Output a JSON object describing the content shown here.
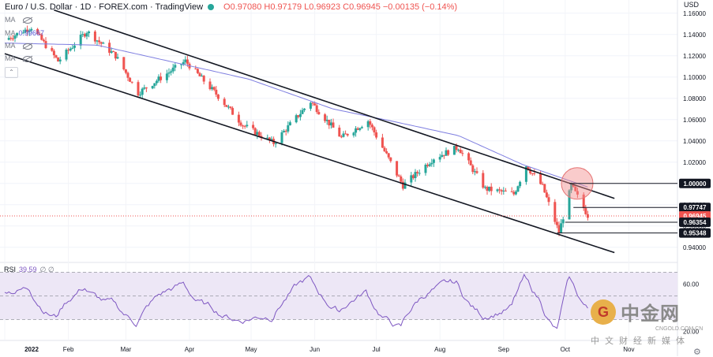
{
  "header": {
    "symbol_title": "Euro / U.S. Dollar · 1D · FOREX.com · TradingView",
    "ohlc": "O0.97080 H0.97179 L0.96923 C0.96945 −0.00135 (−0.14%)"
  },
  "indicators": {
    "ma_rows": [
      {
        "label": "MA",
        "value": ""
      },
      {
        "label": "MA",
        "value": "0.99667"
      },
      {
        "label": "MA",
        "value": ""
      },
      {
        "label": "MA",
        "value": ""
      }
    ],
    "collapse_glyph": "⌃",
    "rsi": {
      "label": "RSI",
      "value": "39.59",
      "options": "∅ ∅"
    }
  },
  "axis": {
    "currency": "USD",
    "settings_glyph": "⚙"
  },
  "watermark": {
    "logo_glyph": "G",
    "name": "中金网",
    "site": "CNGOLD.COM.CN",
    "subtitle": "中文财经新媒体"
  },
  "chart_data": [
    {
      "type": "candlestick",
      "title": "Euro / U.S. Dollar · 1D · FOREX.com",
      "x_labels": [
        "2022",
        "Feb",
        "Mar",
        "Apr",
        "May",
        "Jun",
        "Jul",
        "Aug",
        "Sep",
        "Oct",
        "Nov"
      ],
      "y_ticks": [
        "1.16000",
        "1.14000",
        "1.12000",
        "1.10000",
        "1.08000",
        "1.06000",
        "1.04000",
        "1.02000",
        "1.00000",
        "0.98000",
        "0.96000",
        "0.94000"
      ],
      "ylim": [
        0.928,
        1.168
      ],
      "price_tags": [
        {
          "label": "1.00000",
          "value": 1.0,
          "style": "dark"
        },
        {
          "label": "0.97747",
          "value": 0.97747,
          "style": "dark"
        },
        {
          "label": "0.96945",
          "value": 0.96945,
          "style": "current"
        },
        {
          "label": "0.96354",
          "value": 0.96354,
          "style": "dark"
        },
        {
          "label": "0.95348",
          "value": 0.95348,
          "style": "dark"
        }
      ],
      "colors": {
        "up": "#26a69a",
        "down": "#ef5350",
        "ma": "#7e7ee0",
        "channel": "#131722",
        "circle": "#f28b8b"
      },
      "trend_channel": {
        "upper": [
          {
            "x": "2022-01-25",
            "y": 1.163
          },
          {
            "x": "2022-10-25",
            "y": 0.986
          }
        ],
        "lower": [
          {
            "x": "2022-01-01",
            "y": 1.122
          },
          {
            "x": "2022-10-25",
            "y": 0.935
          }
        ]
      },
      "highlight": {
        "x": "2022-10-03",
        "y": 1.0
      },
      "horizontal_levels": [
        {
          "value": 1.0,
          "from": "2022-10-03"
        },
        {
          "value": 0.97747,
          "from": "2022-10-05"
        },
        {
          "value": 0.96354,
          "from": "2022-10-01"
        },
        {
          "value": 0.95348,
          "from": "2022-09-27"
        }
      ],
      "waypoints": [
        {
          "d": "2022-01-01",
          "p": 1.135
        },
        {
          "d": "2022-01-14",
          "p": 1.147
        },
        {
          "d": "2022-01-27",
          "p": 1.115
        },
        {
          "d": "2022-02-10",
          "p": 1.143
        },
        {
          "d": "2022-02-24",
          "p": 1.12
        },
        {
          "d": "2022-03-07",
          "p": 1.085
        },
        {
          "d": "2022-03-30",
          "p": 1.115
        },
        {
          "d": "2022-04-15",
          "p": 1.082
        },
        {
          "d": "2022-04-27",
          "p": 1.055
        },
        {
          "d": "2022-05-12",
          "p": 1.038
        },
        {
          "d": "2022-05-30",
          "p": 1.077
        },
        {
          "d": "2022-06-14",
          "p": 1.043
        },
        {
          "d": "2022-06-27",
          "p": 1.059
        },
        {
          "d": "2022-07-14",
          "p": 0.998
        },
        {
          "d": "2022-07-29",
          "p": 1.024
        },
        {
          "d": "2022-08-10",
          "p": 1.034
        },
        {
          "d": "2022-08-23",
          "p": 0.995
        },
        {
          "d": "2022-09-06",
          "p": 0.99
        },
        {
          "d": "2022-09-12",
          "p": 1.017
        },
        {
          "d": "2022-09-20",
          "p": 0.997
        },
        {
          "d": "2022-09-28",
          "p": 0.954
        },
        {
          "d": "2022-10-04",
          "p": 0.998
        },
        {
          "d": "2022-10-12",
          "p": 0.97
        }
      ],
      "ma_waypoints": [
        {
          "d": "2022-01-01",
          "p": 1.132
        },
        {
          "d": "2022-02-15",
          "p": 1.13
        },
        {
          "d": "2022-03-15",
          "p": 1.118
        },
        {
          "d": "2022-04-30",
          "p": 1.098
        },
        {
          "d": "2022-06-10",
          "p": 1.07
        },
        {
          "d": "2022-07-10",
          "p": 1.058
        },
        {
          "d": "2022-08-10",
          "p": 1.045
        },
        {
          "d": "2022-09-10",
          "p": 1.018
        },
        {
          "d": "2022-10-12",
          "p": 0.99667
        }
      ]
    },
    {
      "type": "line",
      "title": "RSI",
      "last_value": 39.59,
      "y_ticks": [
        "60.00",
        "20.00"
      ],
      "bands": {
        "upper": 70,
        "lower": 30
      },
      "ylim": [
        15,
        75
      ],
      "color": "#7e57c2",
      "band_fill": "#ede7f6"
    }
  ]
}
